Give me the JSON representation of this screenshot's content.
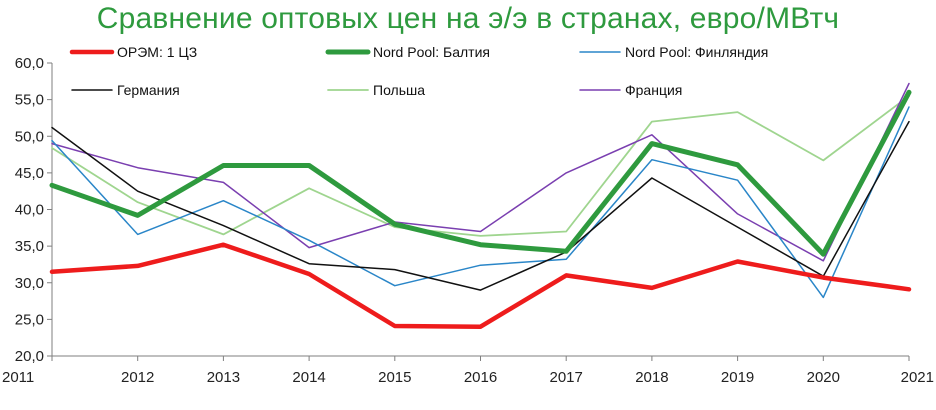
{
  "chart_data": {
    "type": "line",
    "title": "Сравнение оптовых цен на э/э в странах, евро/МВтч",
    "x": [
      "2011",
      "2012",
      "2013",
      "2014",
      "2015",
      "2016",
      "2017",
      "2018",
      "2019",
      "2020",
      "2021"
    ],
    "yticks": [
      "20,0",
      "25,0",
      "30,0",
      "35,0",
      "40,0",
      "45,0",
      "50,0",
      "55,0",
      "60,0"
    ],
    "ylim": [
      20,
      60
    ],
    "grid": false,
    "legend_position": "top",
    "series": [
      {
        "name": "ОРЭМ: 1 ЦЗ",
        "color": "#ee1c1c",
        "width": 4.5,
        "values": [
          31.5,
          32.3,
          35.2,
          31.2,
          24.1,
          24.0,
          31.0,
          29.3,
          32.9,
          30.7,
          29.1
        ]
      },
      {
        "name": "Nord Pool: Балтия",
        "color": "#2e9a3e",
        "width": 5,
        "values": [
          43.3,
          39.2,
          46.0,
          46.0,
          38.0,
          35.2,
          34.3,
          49.0,
          46.1,
          33.9,
          56.0
        ]
      },
      {
        "name": "Nord Pool: Финляндия",
        "color": "#2a86c8",
        "width": 1.5,
        "values": [
          49.4,
          36.6,
          41.2,
          35.8,
          29.6,
          32.4,
          33.2,
          46.8,
          44.0,
          28.0,
          54.0
        ]
      },
      {
        "name": "Германия",
        "color": "#111111",
        "width": 1.5,
        "values": [
          51.2,
          42.5,
          37.8,
          32.6,
          31.8,
          29.0,
          34.2,
          44.3,
          37.6,
          30.9,
          52.0
        ]
      },
      {
        "name": "Польша",
        "color": "#9fd58f",
        "width": 1.8,
        "values": [
          48.4,
          41.0,
          36.6,
          42.9,
          37.6,
          36.4,
          37.0,
          52.0,
          53.3,
          46.7,
          55.5
        ]
      },
      {
        "name": "Франция",
        "color": "#7a3fb0",
        "width": 1.5,
        "values": [
          49.0,
          45.7,
          43.7,
          34.8,
          38.3,
          37.0,
          45.0,
          50.2,
          39.4,
          33.0,
          57.2
        ]
      }
    ]
  }
}
